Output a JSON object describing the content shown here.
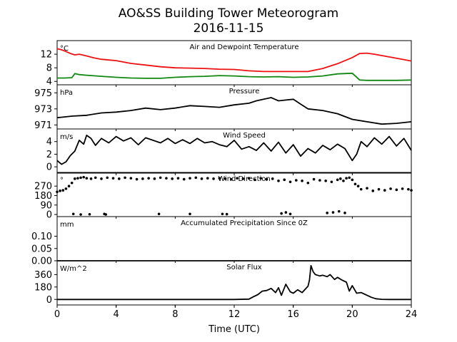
{
  "figure": {
    "title_line1": "AO&SS Building Tower Meteorogram",
    "title_line2": "2016-11-15",
    "xlabel": "Time (UTC)"
  },
  "chart_data": [
    {
      "id": "temp",
      "type": "line",
      "title": "Air and Dewpoint Temperature",
      "unit_label": "°C",
      "ylim": [
        3,
        16
      ],
      "yticks": [
        4,
        8,
        12
      ],
      "xlim": [
        0,
        24
      ],
      "series": [
        {
          "color": "#ee1111",
          "x": [
            0,
            0.3,
            0.6,
            0.9,
            1.2,
            1.5,
            2,
            2.5,
            3,
            3.5,
            4,
            5,
            6,
            7,
            8,
            9,
            10,
            11,
            12,
            13,
            14,
            15,
            16,
            17,
            18,
            19,
            20,
            20.5,
            21,
            21.5,
            22,
            23,
            24
          ],
          "y": [
            13.6,
            13.3,
            12.8,
            12.2,
            11.8,
            12,
            11.5,
            10.9,
            10.5,
            10.3,
            10.1,
            9.3,
            8.8,
            8.3,
            8,
            7.9,
            7.8,
            7.6,
            7.5,
            7.1,
            6.9,
            6.9,
            6.9,
            6.9,
            7.8,
            9.2,
            11,
            12.2,
            12.3,
            12,
            11.6,
            10.8,
            10
          ]
        },
        {
          "color": "#118811",
          "x": [
            0,
            0.5,
            1,
            1.2,
            1.5,
            2,
            3,
            4,
            5,
            6,
            7,
            8,
            9,
            10,
            11,
            12,
            13,
            14,
            15,
            16,
            17,
            18,
            19,
            20,
            20.2,
            20.5,
            21,
            22,
            23,
            24
          ],
          "y": [
            5,
            5,
            5.1,
            6.3,
            6,
            5.8,
            5.5,
            5.2,
            5,
            4.9,
            4.9,
            5.2,
            5.4,
            5.5,
            5.7,
            5.6,
            5.4,
            5.3,
            5.4,
            5.2,
            5.3,
            5.6,
            6.2,
            6.4,
            5.6,
            4.4,
            4.3,
            4.3,
            4.3,
            4.4
          ]
        }
      ]
    },
    {
      "id": "pressure",
      "type": "line",
      "title": "Pressure",
      "unit_label": "hPa",
      "ylim": [
        970.5,
        976
      ],
      "yticks": [
        971,
        973,
        975
      ],
      "xlim": [
        0,
        24
      ],
      "series": [
        {
          "color": "#000000",
          "x": [
            0,
            0.5,
            1,
            2,
            3,
            4,
            5,
            6,
            7,
            8,
            9,
            10,
            11,
            12,
            13,
            13.5,
            14,
            14.5,
            15,
            15.5,
            16,
            16.5,
            17,
            18,
            19,
            20,
            21,
            22,
            23,
            24
          ],
          "y": [
            971.9,
            972,
            972.1,
            972.2,
            972.5,
            972.6,
            972.8,
            973.1,
            972.9,
            973.1,
            973.4,
            973.3,
            973.2,
            973.5,
            973.7,
            974,
            974.2,
            974.4,
            974,
            974.1,
            974.2,
            973.6,
            973,
            972.8,
            972.4,
            971.7,
            971.4,
            971.1,
            971.2,
            971.4
          ]
        }
      ]
    },
    {
      "id": "wind_speed",
      "type": "line",
      "title": "Wind Speed",
      "unit_label": "m/s",
      "ylim": [
        -1,
        6
      ],
      "yticks": [
        0,
        2,
        4
      ],
      "xlim": [
        0,
        24
      ],
      "series": [
        {
          "color": "#000000",
          "x": [
            0,
            0.3,
            0.6,
            0.9,
            1.2,
            1.5,
            1.8,
            2,
            2.3,
            2.6,
            3,
            3.5,
            4,
            4.5,
            5,
            5.5,
            6,
            6.5,
            7,
            7.5,
            8,
            8.5,
            9,
            9.5,
            10,
            10.5,
            11,
            11.5,
            12,
            12.5,
            13,
            13.5,
            14,
            14.5,
            15,
            15.5,
            16,
            16.5,
            17,
            17.5,
            18,
            18.5,
            19,
            19.5,
            20,
            20.3,
            20.6,
            21,
            21.5,
            22,
            22.5,
            23,
            23.5,
            24
          ],
          "y": [
            1,
            0.4,
            0.8,
            1.8,
            2.5,
            4.2,
            3.6,
            5,
            4.5,
            3.4,
            4.5,
            3.8,
            4.8,
            4.1,
            4.6,
            3.5,
            4.6,
            4.2,
            3.8,
            4.5,
            3.7,
            4.3,
            3.7,
            4.5,
            3.8,
            4,
            3.5,
            3.2,
            4.2,
            2.8,
            3.2,
            2.6,
            3.8,
            2.5,
            3.9,
            2.2,
            3.5,
            1.7,
            2.9,
            2.2,
            3.4,
            2.7,
            3.6,
            2.9,
            1,
            2,
            4,
            3.2,
            4.6,
            3.6,
            4.8,
            3.3,
            4.5,
            2.6
          ]
        }
      ]
    },
    {
      "id": "wind_direction",
      "type": "scatter",
      "title": "Wind Direction",
      "unit_label": "°",
      "ylim": [
        -20,
        400
      ],
      "yticks": [
        0,
        90,
        180,
        270
      ],
      "xlim": [
        0,
        24
      ],
      "series": [
        {
          "color": "#000000",
          "x": [
            0,
            0.2,
            0.4,
            0.6,
            0.8,
            1,
            1.2,
            1.4,
            1.6,
            1.8,
            2,
            2.3,
            2.6,
            3,
            3.4,
            3.8,
            4.2,
            4.6,
            5,
            5.4,
            5.8,
            6.2,
            6.6,
            7,
            7.4,
            7.8,
            8.2,
            8.6,
            9,
            9.4,
            9.8,
            10.2,
            10.6,
            11,
            11.4,
            11.8,
            12.2,
            12.6,
            13,
            13.4,
            13.8,
            14.2,
            14.6,
            15,
            15.4,
            15.8,
            16.2,
            16.6,
            17,
            17.4,
            17.8,
            18.2,
            18.6,
            19,
            19.2,
            19.4,
            19.6,
            19.8,
            20,
            20.2,
            20.4,
            20.6,
            21,
            21.4,
            21.8,
            22.2,
            22.6,
            23,
            23.4,
            23.8,
            24
          ],
          "y": [
            215,
            225,
            230,
            245,
            270,
            300,
            340,
            345,
            350,
            355,
            345,
            340,
            350,
            340,
            350,
            345,
            340,
            350,
            345,
            335,
            340,
            345,
            340,
            350,
            345,
            340,
            345,
            335,
            345,
            350,
            340,
            345,
            340,
            345,
            340,
            335,
            345,
            340,
            345,
            330,
            345,
            335,
            340,
            320,
            330,
            310,
            325,
            320,
            300,
            335,
            325,
            320,
            310,
            330,
            340,
            320,
            345,
            350,
            330,
            290,
            270,
            240,
            250,
            225,
            240,
            230,
            245,
            235,
            245,
            240,
            230
          ]
        },
        {
          "color": "#000000",
          "x": [
            1.1,
            1.6,
            2.2,
            3.2,
            3.3,
            6.9,
            9.0,
            11.2,
            11.5,
            15.2,
            15.5,
            15.8,
            18.3,
            18.7,
            19.1,
            19.5
          ],
          "y": [
            5,
            0,
            2,
            5,
            0,
            5,
            5,
            5,
            3,
            10,
            20,
            5,
            15,
            20,
            30,
            15
          ]
        }
      ]
    },
    {
      "id": "precip",
      "type": "line",
      "title": "Accumulated Precipitation Since 0Z",
      "unit_label": "mm",
      "ylim": [
        0,
        0.18
      ],
      "yticks": [
        0.0,
        0.05,
        0.1
      ],
      "ytick_labels": [
        "0.00",
        "0.05",
        "0.10"
      ],
      "xlim": [
        0,
        24
      ],
      "series": [
        {
          "color": "#000000",
          "x": [
            0,
            24
          ],
          "y": [
            0,
            0
          ]
        }
      ]
    },
    {
      "id": "solar",
      "type": "line",
      "title": "Solar Flux",
      "unit_label": "W/m^2",
      "ylim": [
        -80,
        560
      ],
      "yticks": [
        0,
        180,
        360
      ],
      "xlim": [
        0,
        24
      ],
      "series": [
        {
          "color": "#000000",
          "x": [
            0,
            12,
            13,
            13.3,
            13.6,
            13.9,
            14.2,
            14.5,
            14.8,
            15,
            15.2,
            15.5,
            15.8,
            16,
            16.3,
            16.6,
            17,
            17.1,
            17.2,
            17.35,
            17.5,
            17.8,
            18,
            18.3,
            18.5,
            18.8,
            19,
            19.3,
            19.6,
            19.8,
            20,
            20.3,
            20.6,
            21,
            21.3,
            21.6,
            22,
            22.5,
            24
          ],
          "y": [
            0,
            0,
            5,
            40,
            70,
            120,
            130,
            160,
            100,
            170,
            60,
            220,
            110,
            90,
            140,
            100,
            190,
            280,
            490,
            400,
            360,
            340,
            350,
            330,
            360,
            290,
            320,
            280,
            250,
            120,
            200,
            90,
            100,
            60,
            30,
            10,
            2,
            0,
            0
          ]
        }
      ]
    }
  ]
}
